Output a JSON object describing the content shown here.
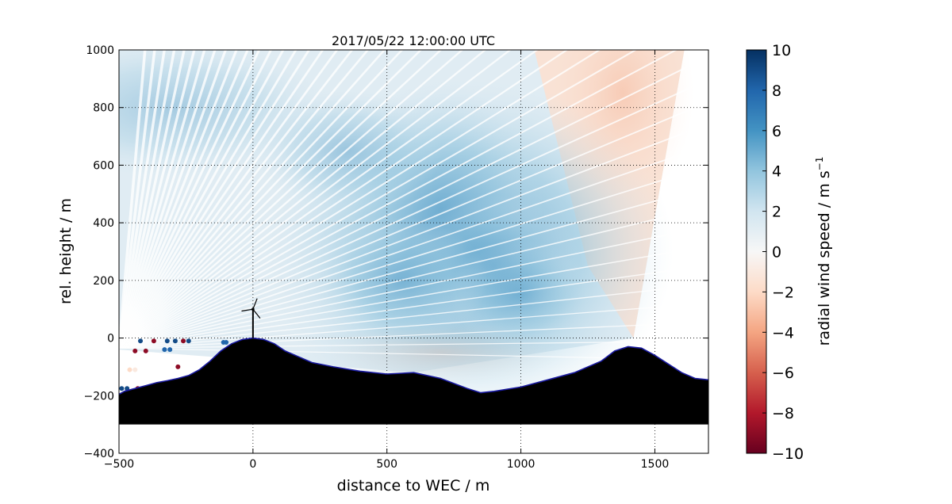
{
  "chart_data": {
    "type": "heatmap",
    "title": "2017/05/22 12:00:00 UTC",
    "xlabel": "distance to WEC / m",
    "ylabel": "rel. height / m",
    "xlim": [
      -500,
      1700
    ],
    "ylim": [
      -400,
      1000
    ],
    "xticks": [
      -500,
      0,
      500,
      1000,
      1500
    ],
    "yticks": [
      -400,
      -200,
      0,
      200,
      400,
      600,
      800,
      1000
    ],
    "x_tick_labels": [
      "−500",
      "0",
      "500",
      "1000",
      "1500"
    ],
    "y_tick_labels": [
      "−400",
      "−200",
      "0",
      "200",
      "400",
      "600",
      "800",
      "1000"
    ],
    "grid": true,
    "colorbar": {
      "label": "radial wind speed / m s",
      "label_superscript": "−1",
      "range": [
        -10,
        10
      ],
      "ticks": [
        -10,
        -8,
        -6,
        -4,
        -2,
        0,
        2,
        4,
        6,
        8,
        10
      ],
      "tick_labels": [
        "−10",
        "−8",
        "−6",
        "−4",
        "−2",
        "0",
        "2",
        "4",
        "6",
        "8",
        "10"
      ],
      "colormap": "RdBu",
      "colors": [
        "#67001f",
        "#b2182b",
        "#d6604d",
        "#f4a582",
        "#fddbc7",
        "#f7f7f7",
        "#d1e5f0",
        "#92c5de",
        "#4393c3",
        "#2166ac",
        "#053061"
      ]
    },
    "wind_field_regions": [
      {
        "name": "upper-left light blue",
        "x": -300,
        "y": 800,
        "value": 2.5
      },
      {
        "name": "central blue",
        "x": 800,
        "y": 300,
        "value": 5
      },
      {
        "name": "upper-right red",
        "x": 1380,
        "y": 850,
        "value": -2.5
      },
      {
        "name": "near-ground light red",
        "x": 700,
        "y": -50,
        "value": -1.5
      }
    ],
    "scan_extent": {
      "x_max_top": 1610,
      "x_max_bottom": 1420
    },
    "terrain": {
      "fill_color": "#000000",
      "outline_color": "#1a1aa0",
      "base_height": -300,
      "x": [
        -500,
        -480,
        -440,
        -400,
        -360,
        -320,
        -280,
        -240,
        -200,
        -160,
        -120,
        -80,
        -40,
        0,
        40,
        80,
        120,
        170,
        220,
        300,
        400,
        500,
        600,
        700,
        800,
        850,
        900,
        1000,
        1100,
        1200,
        1300,
        1350,
        1400,
        1450,
        1500,
        1550,
        1600,
        1650,
        1700
      ],
      "height": [
        -195,
        -185,
        -175,
        -165,
        -155,
        -148,
        -140,
        -130,
        -110,
        -80,
        -45,
        -20,
        -5,
        0,
        -5,
        -20,
        -45,
        -65,
        -85,
        -100,
        -115,
        -125,
        -120,
        -140,
        -175,
        -190,
        -185,
        -170,
        -145,
        -120,
        -80,
        -45,
        -30,
        -35,
        -60,
        -90,
        -120,
        -140,
        -145
      ]
    },
    "turbine": {
      "x": 0,
      "hub_height": 100,
      "rotor_radius": 40
    },
    "scattered_points": [
      {
        "x": -420,
        "y": -10,
        "value": 9
      },
      {
        "x": -370,
        "y": -10,
        "value": -9
      },
      {
        "x": -320,
        "y": -10,
        "value": 9
      },
      {
        "x": -290,
        "y": -10,
        "value": 9
      },
      {
        "x": -260,
        "y": -10,
        "value": -9
      },
      {
        "x": -240,
        "y": -10,
        "value": 9
      },
      {
        "x": -440,
        "y": -45,
        "value": -9
      },
      {
        "x": -400,
        "y": -45,
        "value": -9
      },
      {
        "x": -330,
        "y": -40,
        "value": 8
      },
      {
        "x": -310,
        "y": -40,
        "value": 8
      },
      {
        "x": -280,
        "y": -100,
        "value": -9
      },
      {
        "x": -460,
        "y": -110,
        "value": -2
      },
      {
        "x": -440,
        "y": -110,
        "value": -1
      },
      {
        "x": -490,
        "y": -175,
        "value": 9
      },
      {
        "x": -470,
        "y": -175,
        "value": 9
      },
      {
        "x": -430,
        "y": -175,
        "value": -9
      },
      {
        "x": -100,
        "y": -15,
        "value": 8
      },
      {
        "x": -110,
        "y": -15,
        "value": 8
      }
    ]
  }
}
